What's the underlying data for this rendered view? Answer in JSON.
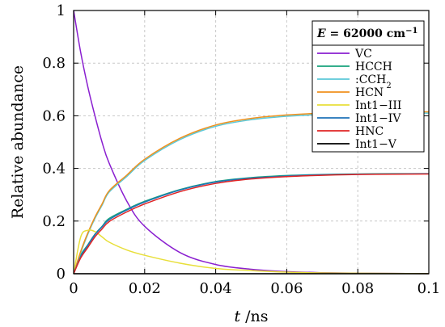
{
  "chart_data": {
    "type": "line",
    "xlabel_var": "t",
    "xlabel_unit": " /ns",
    "ylabel": "Relative abundance",
    "xlim": [
      0,
      0.1
    ],
    "ylim": [
      0,
      1
    ],
    "xticks": [
      0,
      0.02,
      0.04,
      0.06,
      0.08,
      0.1
    ],
    "xtick_labels": [
      "0",
      "0.02",
      "0.04",
      "0.06",
      "0.08",
      "0.1"
    ],
    "yticks": [
      0,
      0.2,
      0.4,
      0.6,
      0.8,
      1
    ],
    "ytick_labels": [
      "0",
      "0.2",
      "0.4",
      "0.6",
      "0.8",
      "1"
    ],
    "grid": true,
    "legend": {
      "placement": "top-right",
      "title_prefix": "E",
      "title_value": " = 62000 cm",
      "title_exponent": "−1"
    },
    "x": [
      0,
      0.002,
      0.004,
      0.006,
      0.008,
      0.01,
      0.015,
      0.02,
      0.03,
      0.04,
      0.05,
      0.06,
      0.07,
      0.08,
      0.09,
      0.1
    ],
    "series": [
      {
        "name": "VC",
        "label_main": "VC",
        "color": "#8a1fd0",
        "values": [
          1.0,
          0.84,
          0.71,
          0.6,
          0.5,
          0.42,
          0.275,
          0.18,
          0.08,
          0.035,
          0.017,
          0.008,
          0.004,
          0.002,
          0.001,
          0.0005
        ]
      },
      {
        "name": "HCCH",
        "label_main": "HCCH",
        "color": "#17a37c",
        "values": [
          0.0,
          0.07,
          0.11,
          0.15,
          0.18,
          0.21,
          0.245,
          0.275,
          0.32,
          0.35,
          0.365,
          0.373,
          0.377,
          0.379,
          0.38,
          0.38
        ]
      },
      {
        "name": ":CCH2",
        "label_main": ":CCH",
        "label_sub": "2",
        "color": "#5bc8d8",
        "values": [
          0.0,
          0.08,
          0.15,
          0.21,
          0.26,
          0.31,
          0.37,
          0.43,
          0.51,
          0.56,
          0.585,
          0.598,
          0.605,
          0.608,
          0.61,
          0.61
        ]
      },
      {
        "name": "HCN",
        "label_main": "HCN",
        "color": "#f0911e",
        "values": [
          0.0,
          0.085,
          0.155,
          0.215,
          0.265,
          0.315,
          0.375,
          0.435,
          0.515,
          0.565,
          0.59,
          0.603,
          0.61,
          0.613,
          0.615,
          0.615
        ]
      },
      {
        "name": "Int1−III",
        "label_main": "Int1−III",
        "color": "#e8df3a",
        "values": [
          0.0,
          0.14,
          0.165,
          0.16,
          0.14,
          0.12,
          0.09,
          0.07,
          0.04,
          0.02,
          0.012,
          0.006,
          0.003,
          0.002,
          0.001,
          0.0005
        ]
      },
      {
        "name": "Int1−IV",
        "label_main": "Int1−IV",
        "color": "#1f72b8",
        "values": [
          0.0,
          0.065,
          0.108,
          0.148,
          0.178,
          0.205,
          0.242,
          0.272,
          0.318,
          0.348,
          0.363,
          0.371,
          0.376,
          0.378,
          0.379,
          0.38
        ]
      },
      {
        "name": "HNC",
        "label_main": "HNC",
        "color": "#e02424",
        "values": [
          0.0,
          0.06,
          0.1,
          0.14,
          0.17,
          0.198,
          0.235,
          0.265,
          0.312,
          0.343,
          0.36,
          0.369,
          0.374,
          0.377,
          0.378,
          0.379
        ]
      },
      {
        "name": "Int1−V",
        "label_main": "Int1−V",
        "color": "#000000",
        "values": [
          0.0,
          0.0,
          0.0,
          0.0,
          0.0,
          0.0,
          0.0,
          0.0,
          0.0,
          0.0,
          0.0,
          0.0,
          0.0,
          0.0,
          0.0,
          0.0
        ]
      }
    ]
  }
}
